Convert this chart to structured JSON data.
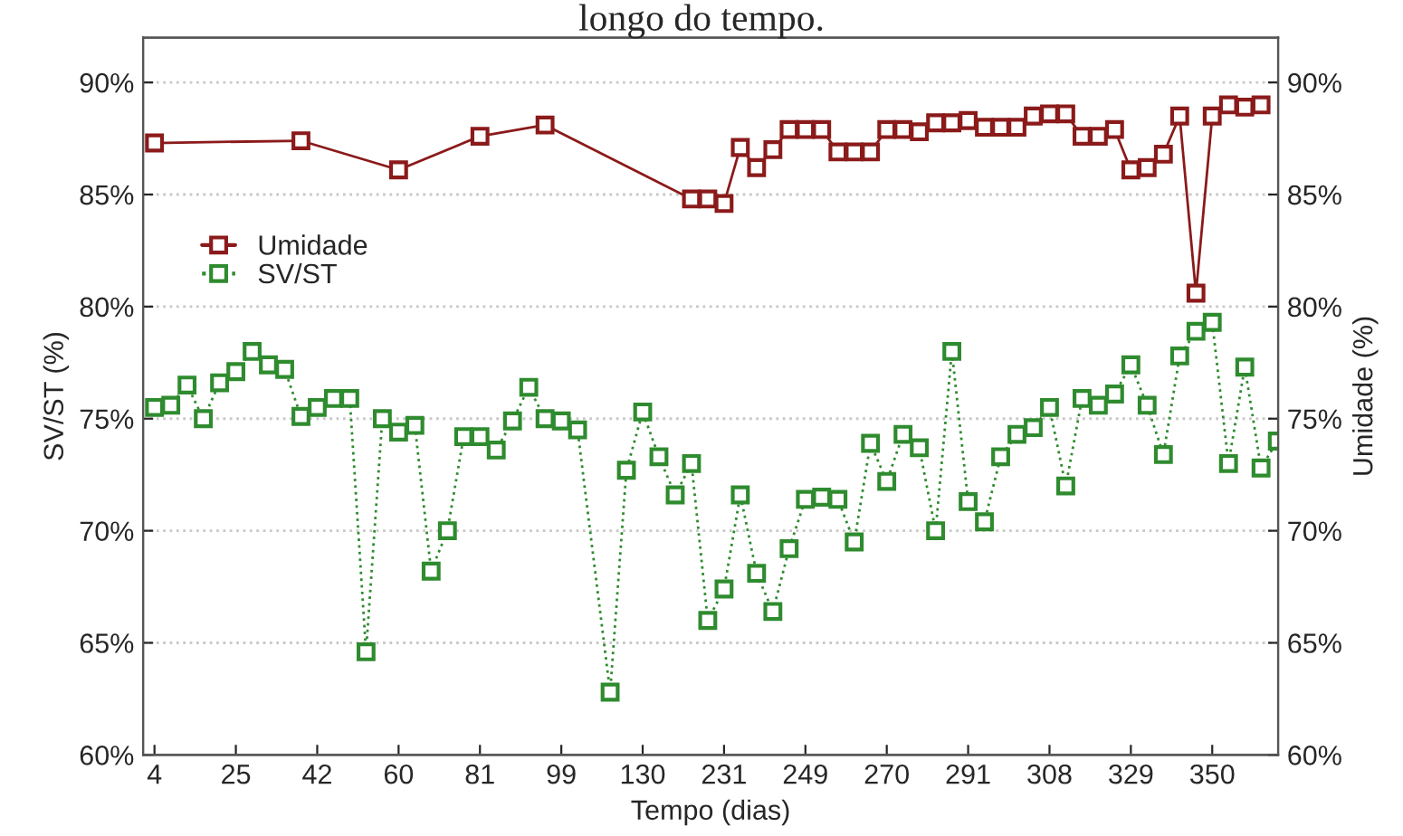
{
  "chart_data": {
    "type": "line",
    "title": "longo do tempo.",
    "xlabel": "Tempo (dias)",
    "ylabel": "SV/ST (%)",
    "y2label": "Umidade (%)",
    "categories": [
      "4",
      null,
      null,
      null,
      null,
      "25",
      null,
      null,
      null,
      null,
      "42",
      null,
      null,
      null,
      null,
      "60",
      null,
      null,
      null,
      null,
      "81",
      null,
      null,
      null,
      null,
      "99",
      null,
      null,
      null,
      null,
      "130",
      null,
      null,
      null,
      null,
      "231",
      null,
      null,
      null,
      null,
      "249",
      null,
      null,
      null,
      null,
      "270",
      null,
      null,
      null,
      null,
      "291",
      null,
      null,
      null,
      null,
      "308",
      null,
      null,
      null,
      null,
      "329",
      null,
      null,
      null,
      null,
      "350",
      null,
      null,
      null,
      null
    ],
    "series": [
      {
        "name": "Umidade",
        "color": "#8b1a1a",
        "axis": "y2",
        "line_style": "solid",
        "values": [
          87.3,
          null,
          null,
          null,
          null,
          null,
          null,
          null,
          null,
          87.4,
          null,
          null,
          null,
          null,
          null,
          86.1,
          null,
          null,
          null,
          null,
          87.6,
          null,
          null,
          null,
          88.1,
          null,
          null,
          null,
          null,
          null,
          null,
          null,
          null,
          84.8,
          84.8,
          84.6,
          87.1,
          86.2,
          87.0,
          87.9,
          87.9,
          87.9,
          86.9,
          86.9,
          86.9,
          87.9,
          87.9,
          87.8,
          88.2,
          88.2,
          88.3,
          88.0,
          88.0,
          88.0,
          88.5,
          88.6,
          88.6,
          87.6,
          87.6,
          87.9,
          86.1,
          86.2,
          86.8,
          88.5,
          80.6,
          88.5,
          89.0,
          88.9,
          89.0,
          null
        ]
      },
      {
        "name": "SV/ST",
        "color": "#2e8b2e",
        "line_style": "dotted",
        "values": [
          75.5,
          75.6,
          76.5,
          75.0,
          76.6,
          77.1,
          78.0,
          77.4,
          77.2,
          75.1,
          75.5,
          75.9,
          75.9,
          64.6,
          75.0,
          74.4,
          74.7,
          68.2,
          70.0,
          74.2,
          74.2,
          73.6,
          74.9,
          76.4,
          75.0,
          74.9,
          74.5,
          null,
          62.8,
          72.7,
          75.3,
          73.3,
          71.6,
          73.0,
          66.0,
          67.4,
          71.6,
          68.1,
          66.4,
          69.2,
          71.4,
          71.5,
          71.4,
          69.5,
          73.9,
          72.2,
          74.3,
          73.7,
          70.0,
          78.0,
          71.3,
          70.4,
          73.3,
          74.3,
          74.6,
          75.5,
          72.0,
          75.9,
          75.6,
          76.1,
          77.4,
          75.6,
          73.4,
          77.8,
          78.9,
          79.3,
          73.0,
          77.3,
          72.8,
          74.0
        ]
      }
    ],
    "ylim": [
      60,
      92
    ],
    "yticks": [
      {
        "value": 60,
        "label": "60%"
      },
      {
        "value": 65,
        "label": "65%"
      },
      {
        "value": 70,
        "label": "70%"
      },
      {
        "value": 75,
        "label": "75%"
      },
      {
        "value": 80,
        "label": "80%"
      },
      {
        "value": 85,
        "label": "85%"
      },
      {
        "value": 90,
        "label": "90%"
      }
    ],
    "y2lim": [
      60,
      92
    ],
    "y2ticks": [
      {
        "value": 60,
        "label": "60%"
      },
      {
        "value": 65,
        "label": "65%"
      },
      {
        "value": 70,
        "label": "70%"
      },
      {
        "value": 75,
        "label": "75%"
      },
      {
        "value": 80,
        "label": "80%"
      },
      {
        "value": 85,
        "label": "85%"
      },
      {
        "value": 90,
        "label": "90%"
      }
    ],
    "grid": "y",
    "legend": "top left",
    "marker": "square"
  }
}
